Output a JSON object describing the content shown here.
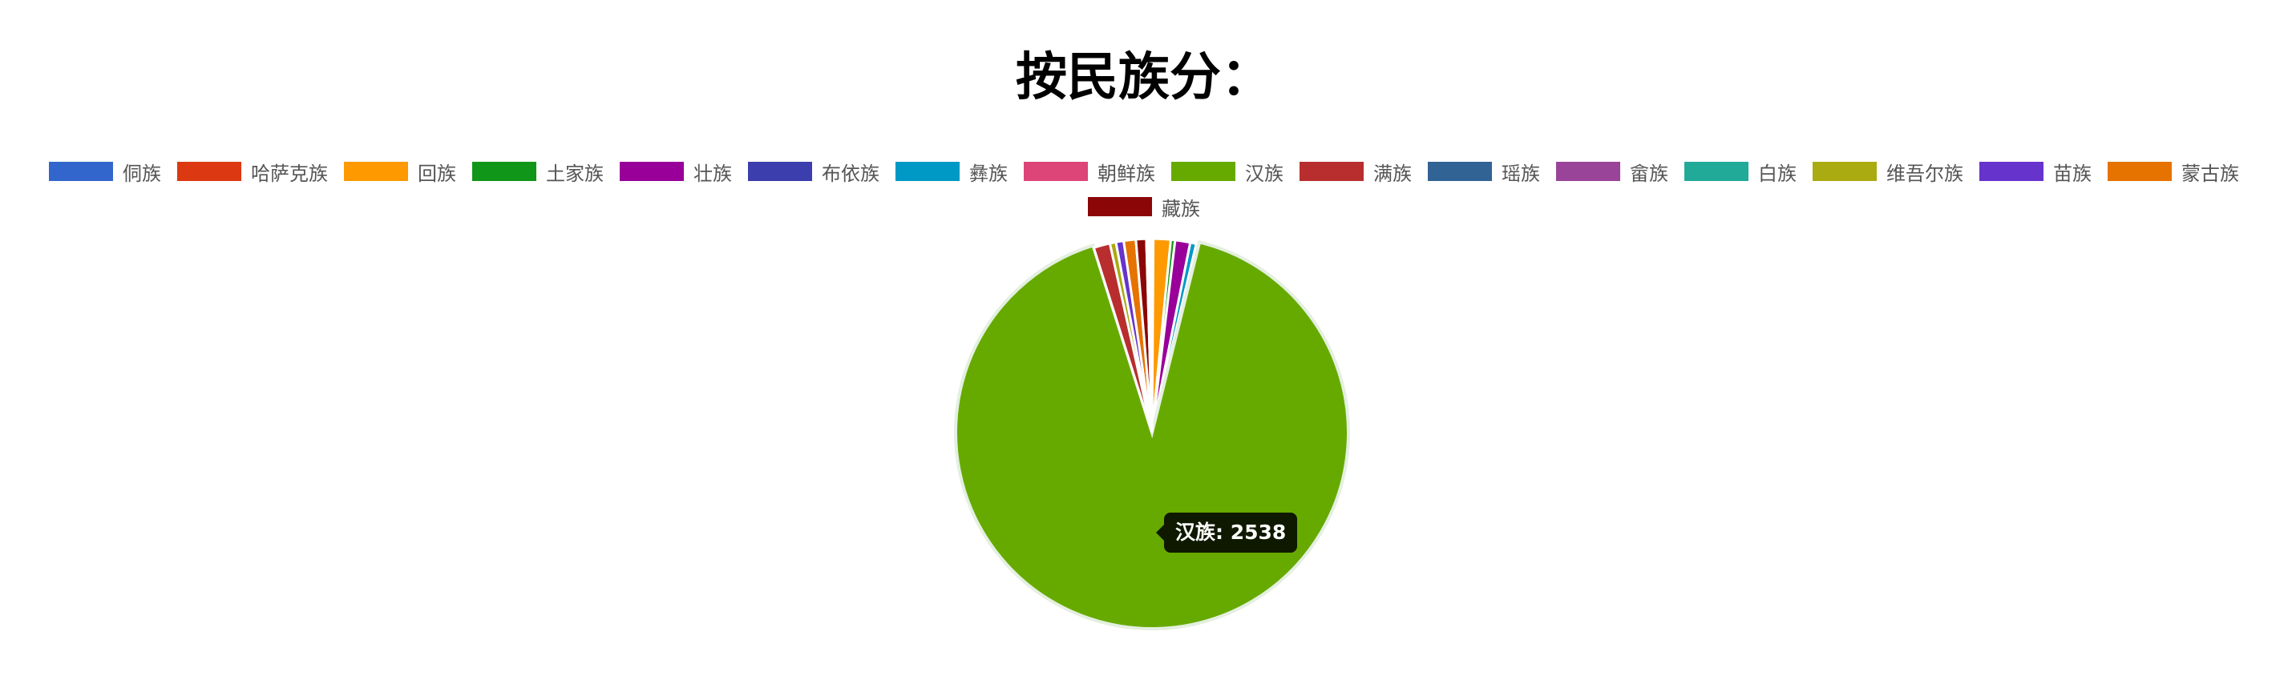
{
  "chart_data": {
    "type": "pie",
    "title": "按民族分：",
    "legend_position": "top",
    "categories": [
      "侗族",
      "哈萨克族",
      "回族",
      "土家族",
      "壮族",
      "布依族",
      "彝族",
      "朝鲜族",
      "汉族",
      "满族",
      "瑶族",
      "畲族",
      "白族",
      "维吾尔族",
      "苗族",
      "蒙古族",
      "藏族"
    ],
    "values": [
      3,
      3,
      40,
      10,
      35,
      4,
      14,
      3,
      2538,
      38,
      3,
      3,
      3,
      14,
      18,
      28,
      24
    ],
    "colors": [
      "#3366cc",
      "#dc3912",
      "#ff9900",
      "#109618",
      "#990099",
      "#3b3eac",
      "#0099c6",
      "#dd4477",
      "#66aa00",
      "#b82e2e",
      "#316395",
      "#994499",
      "#22aa99",
      "#aaaa11",
      "#6633cc",
      "#e67300",
      "#8b0707"
    ],
    "tooltip": {
      "category": "汉族",
      "value": 2538,
      "text": "汉族: 2538"
    }
  }
}
